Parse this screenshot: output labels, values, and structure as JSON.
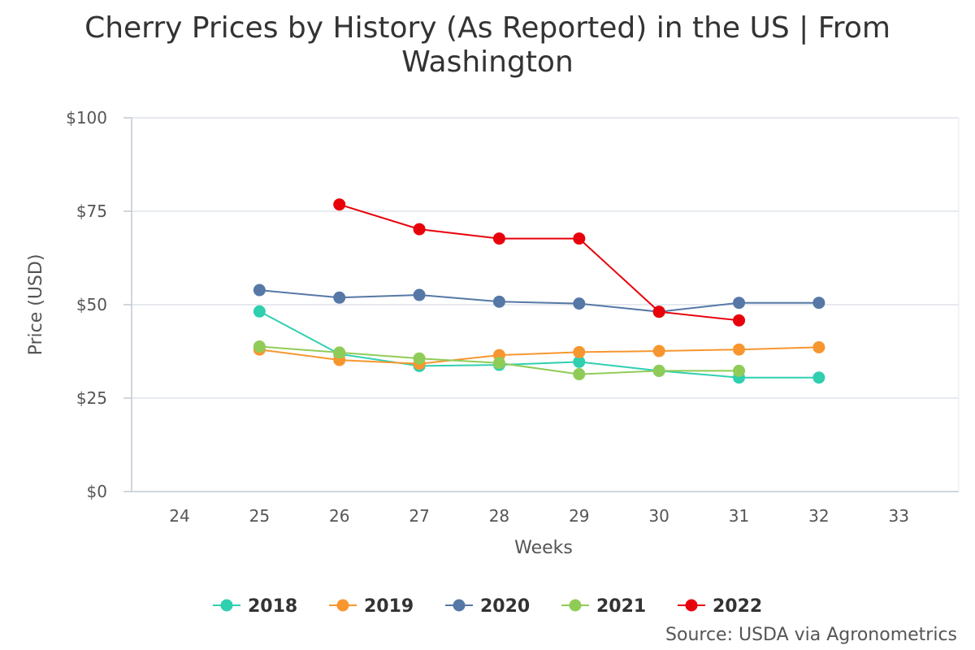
{
  "chart_data": {
    "type": "line",
    "title": "Cherry Prices by History (As Reported) in the US | From Washington",
    "xlabel": "Weeks",
    "ylabel": "Price (USD)",
    "x_ticks": [
      24,
      25,
      26,
      27,
      28,
      29,
      30,
      31,
      32,
      33
    ],
    "x_range": [
      23.4,
      33.75
    ],
    "ylim": [
      0,
      100
    ],
    "y_ticks": [
      0,
      25,
      50,
      75,
      100
    ],
    "y_tick_labels": [
      "$0",
      "$25",
      "$50",
      "$75",
      "$100"
    ],
    "grid": true,
    "legend_position": "bottom-center",
    "series": [
      {
        "name": "2018",
        "color": "#2fcfb0",
        "points": [
          [
            25,
            48.2
          ],
          [
            26,
            36.8
          ],
          [
            27,
            33.6
          ],
          [
            28,
            33.9
          ],
          [
            29,
            34.7
          ],
          [
            30,
            32.3
          ],
          [
            31,
            30.5
          ],
          [
            32,
            30.5
          ]
        ]
      },
      {
        "name": "2019",
        "color": "#f7962f",
        "points": [
          [
            25,
            38.0
          ],
          [
            26,
            35.2
          ],
          [
            27,
            34.2
          ],
          [
            28,
            36.5
          ],
          [
            29,
            37.3
          ],
          [
            30,
            37.6
          ],
          [
            31,
            38.0
          ],
          [
            32,
            38.6
          ]
        ]
      },
      {
        "name": "2020",
        "color": "#5578a6",
        "points": [
          [
            25,
            53.9
          ],
          [
            26,
            51.9
          ],
          [
            27,
            52.6
          ],
          [
            28,
            50.8
          ],
          [
            29,
            50.3
          ],
          [
            30,
            48.1
          ],
          [
            31,
            50.5
          ],
          [
            32,
            50.5
          ]
        ]
      },
      {
        "name": "2021",
        "color": "#8fcc57",
        "points": [
          [
            25,
            38.8
          ],
          [
            26,
            37.2
          ],
          [
            27,
            35.6
          ],
          [
            28,
            34.4
          ],
          [
            29,
            31.4
          ],
          [
            30,
            32.3
          ],
          [
            31,
            32.3
          ]
        ]
      },
      {
        "name": "2022",
        "color": "#e8000b",
        "points": [
          [
            26,
            76.8
          ],
          [
            27,
            70.2
          ],
          [
            28,
            67.7
          ],
          [
            29,
            67.7
          ],
          [
            30,
            48.1
          ],
          [
            31,
            45.8
          ]
        ]
      }
    ],
    "source": "Source: USDA via Agronometrics"
  }
}
